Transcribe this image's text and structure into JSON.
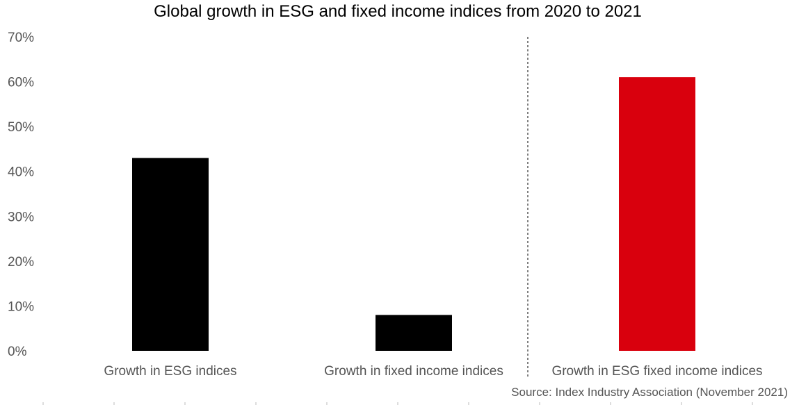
{
  "chart_data": {
    "type": "bar",
    "title": "Global growth in ESG and fixed income indices from 2020 to 2021",
    "source": "Source: Index Industry Association (November 2021)",
    "categories": [
      "Growth in ESG indices",
      "Growth in fixed income indices",
      "Growth in ESG fixed income indices"
    ],
    "values": [
      43,
      8,
      61
    ],
    "colors": [
      "#000000",
      "#000000",
      "#d9000d"
    ],
    "y_ticks": [
      "0%",
      "10%",
      "20%",
      "30%",
      "40%",
      "50%",
      "60%",
      "70%"
    ],
    "ylim": [
      0,
      70
    ],
    "xlabel": "",
    "ylabel": "",
    "grid": false,
    "separator_line": "dashed vertical between second and third category"
  }
}
